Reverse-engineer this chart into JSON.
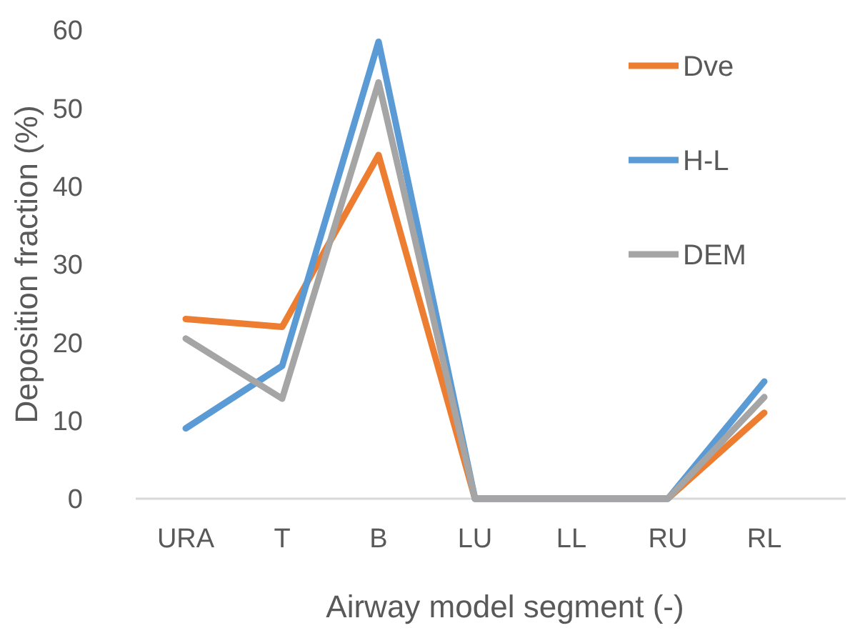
{
  "chart_data": {
    "type": "line",
    "xlabel": "Airway model segment (-)",
    "ylabel": "Deposition fraction (%)",
    "categories": [
      "URA",
      "T",
      "B",
      "LU",
      "LL",
      "RU",
      "RL"
    ],
    "series": [
      {
        "name": "Dve",
        "color": "#ed7d31",
        "values": [
          23,
          22,
          44,
          0,
          0,
          0,
          11
        ]
      },
      {
        "name": "H-L",
        "color": "#5b9bd5",
        "values": [
          9,
          17,
          58.5,
          0,
          0,
          0,
          15
        ]
      },
      {
        "name": "DEM",
        "color": "#a5a5a5",
        "values": [
          20.5,
          12.8,
          53.3,
          0,
          0,
          0,
          13
        ]
      }
    ],
    "ylim": [
      0,
      60
    ],
    "yticks": [
      0,
      10,
      20,
      30,
      40,
      50,
      60
    ],
    "grid": false,
    "legend": "top right",
    "marker": "none",
    "line_style": "solid"
  }
}
